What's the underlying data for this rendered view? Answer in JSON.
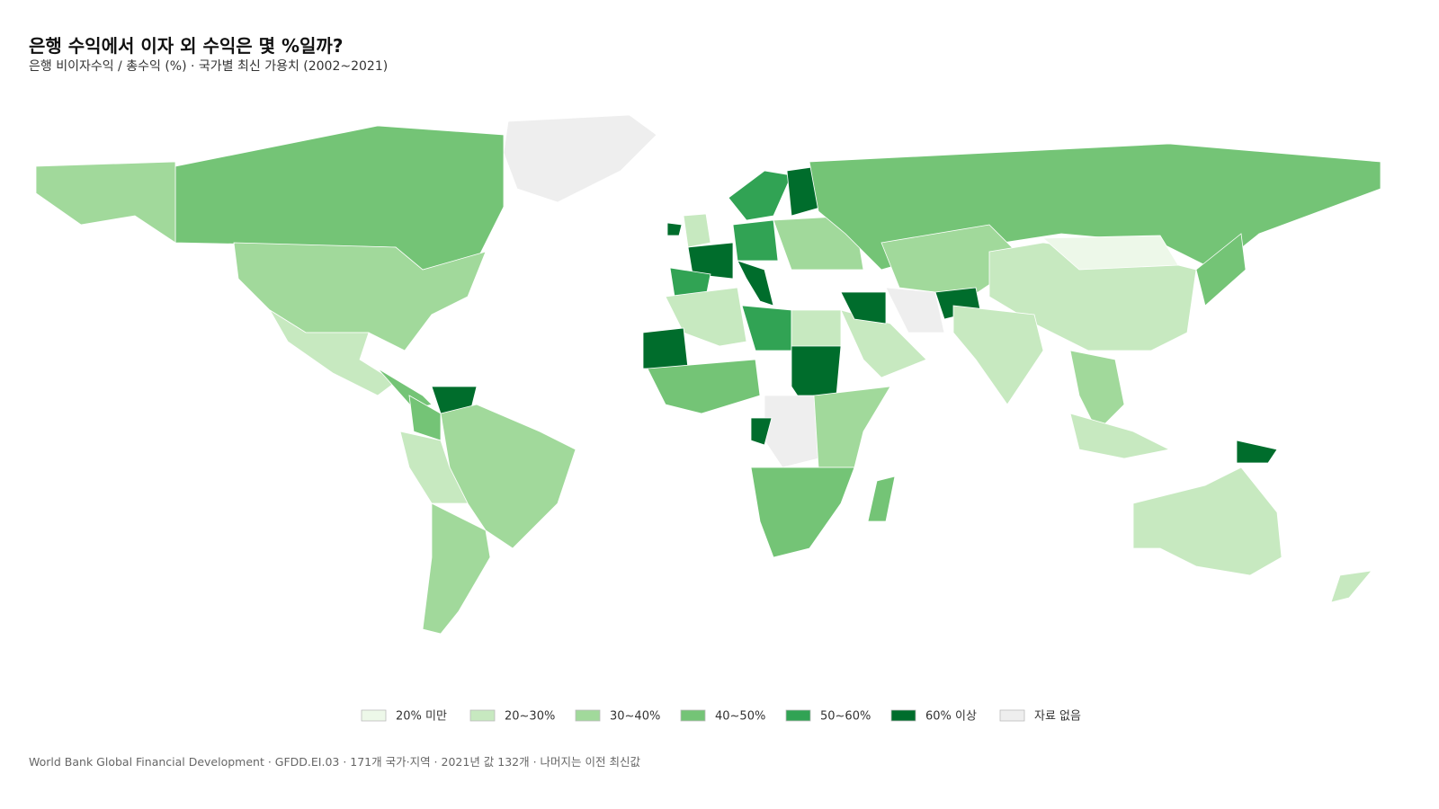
{
  "header": {
    "title": "은행 수익에서 이자 외 수익은 몇 %일까?",
    "subtitle": "은행 비이자수익 / 총수익 (%) · 국가별 최신 가용치 (2002~2021)"
  },
  "legend": {
    "items": [
      {
        "label": "20% 미만",
        "color": "#edf8e9"
      },
      {
        "label": "20~30%",
        "color": "#c7e9c0"
      },
      {
        "label": "30~40%",
        "color": "#a1d99b"
      },
      {
        "label": "40~50%",
        "color": "#74c476"
      },
      {
        "label": "50~60%",
        "color": "#31a354"
      },
      {
        "label": "60% 이상",
        "color": "#006d2c"
      },
      {
        "label": "자료 없음",
        "color": "#eeeeee"
      }
    ]
  },
  "footer": {
    "source": "World Bank Global Financial Development · GFDD.EI.03 · 171개 국가·지역 · 2021년 값 132개 · 나머지는 이전 최신값"
  }
}
